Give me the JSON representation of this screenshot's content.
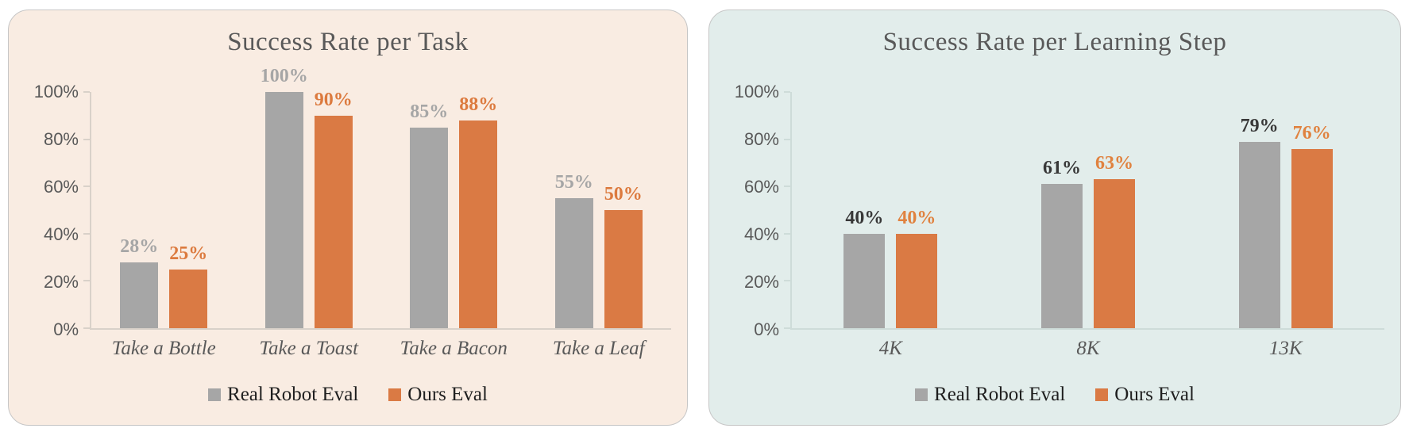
{
  "figure": {
    "background": "#ffffff"
  },
  "chart_data": [
    {
      "type": "bar",
      "title": "Success Rate per Task",
      "panel_bg": "#f9ece2",
      "axis_color": "#d9d1c9",
      "title_color": "#595959",
      "categories": [
        "Take a Bottle",
        "Take a Toast",
        "Take a Bacon",
        "Take a Leaf"
      ],
      "series": [
        {
          "name": "Real Robot Eval",
          "color": "#a6a6a6",
          "label_color": "#a6a6a6",
          "values": [
            28,
            100,
            85,
            55
          ],
          "data_labels": [
            "28%",
            "100%",
            "85%",
            "55%"
          ]
        },
        {
          "name": "Ours Eval",
          "color": "#da7a44",
          "label_color": "#dc7a3e",
          "values": [
            25,
            90,
            88,
            50
          ],
          "data_labels": [
            "25%",
            "90%",
            "88%",
            "50%"
          ]
        }
      ],
      "xlabel": "",
      "ylabel": "",
      "ylim": [
        0,
        100
      ],
      "y_tick_values": [
        0,
        20,
        40,
        60,
        80,
        100
      ],
      "y_tick_labels": [
        "0%",
        "20%",
        "40%",
        "60%",
        "80%",
        "100%"
      ],
      "grid": false,
      "legend_position": "bottom"
    },
    {
      "type": "bar",
      "title": "Success Rate per Learning Step",
      "panel_bg": "#e2edeb",
      "axis_color": "#cedcd9",
      "title_color": "#595959",
      "categories": [
        "4K",
        "8K",
        "13K"
      ],
      "series": [
        {
          "name": "Real Robot Eval",
          "color": "#a6a6a6",
          "label_color": "#383838",
          "values": [
            40,
            61,
            79
          ],
          "data_labels": [
            "40%",
            "61%",
            "79%"
          ]
        },
        {
          "name": "Ours Eval",
          "color": "#da7a44",
          "label_color": "#e0823f",
          "values": [
            40,
            63,
            76
          ],
          "data_labels": [
            "40%",
            "63%",
            "76%"
          ]
        }
      ],
      "xlabel": "",
      "ylabel": "",
      "ylim": [
        0,
        100
      ],
      "y_tick_values": [
        0,
        20,
        40,
        60,
        80,
        100
      ],
      "y_tick_labels": [
        "0%",
        "20%",
        "40%",
        "60%",
        "80%",
        "100%"
      ],
      "grid": false,
      "legend_position": "bottom"
    }
  ]
}
